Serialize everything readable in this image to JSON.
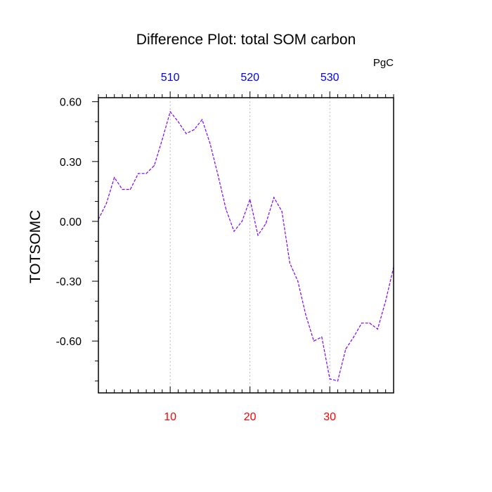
{
  "chart_data": {
    "type": "line",
    "title": "Difference Plot: total SOM carbon",
    "units": "PgC",
    "ylabel": "TOTSOMC",
    "xlabel": "",
    "xlim": [
      1,
      38
    ],
    "ylim": [
      -0.86,
      0.62
    ],
    "grid": "vertical dashed lines at bottom ticks",
    "bottom_axis": {
      "ticks": [
        10,
        20,
        30
      ],
      "tick_labels": [
        "10",
        "20",
        "30"
      ],
      "color": "#ff0000"
    },
    "top_axis": {
      "ticks": [
        10,
        20,
        30
      ],
      "tick_labels": [
        "510",
        "520",
        "530"
      ],
      "color": "#0000ff"
    },
    "left_axis": {
      "ticks": [
        0.6,
        0.3,
        0.0,
        -0.3,
        -0.6
      ],
      "tick_labels": [
        "0.60",
        "0.30",
        "0.00",
        "-0.30",
        "-0.60"
      ]
    },
    "series": [
      {
        "color": "#8000ff",
        "line_style": "dashed",
        "x": [
          1,
          2,
          3,
          4,
          5,
          6,
          7,
          8,
          9,
          10,
          11,
          12,
          13,
          14,
          15,
          16,
          17,
          18,
          19,
          20,
          21,
          22,
          23,
          24,
          25,
          26,
          27,
          28,
          29,
          30,
          31,
          32,
          33,
          34,
          35,
          36,
          37,
          38
        ],
        "values": [
          0.01,
          0.09,
          0.22,
          0.16,
          0.16,
          0.24,
          0.24,
          0.28,
          0.41,
          0.55,
          0.5,
          0.44,
          0.46,
          0.51,
          0.39,
          0.23,
          0.06,
          -0.05,
          0.0,
          0.11,
          -0.07,
          -0.01,
          0.12,
          0.05,
          -0.21,
          -0.3,
          -0.47,
          -0.6,
          -0.58,
          -0.79,
          -0.8,
          -0.64,
          -0.58,
          -0.51,
          -0.51,
          -0.54,
          -0.4,
          -0.23
        ]
      }
    ]
  }
}
